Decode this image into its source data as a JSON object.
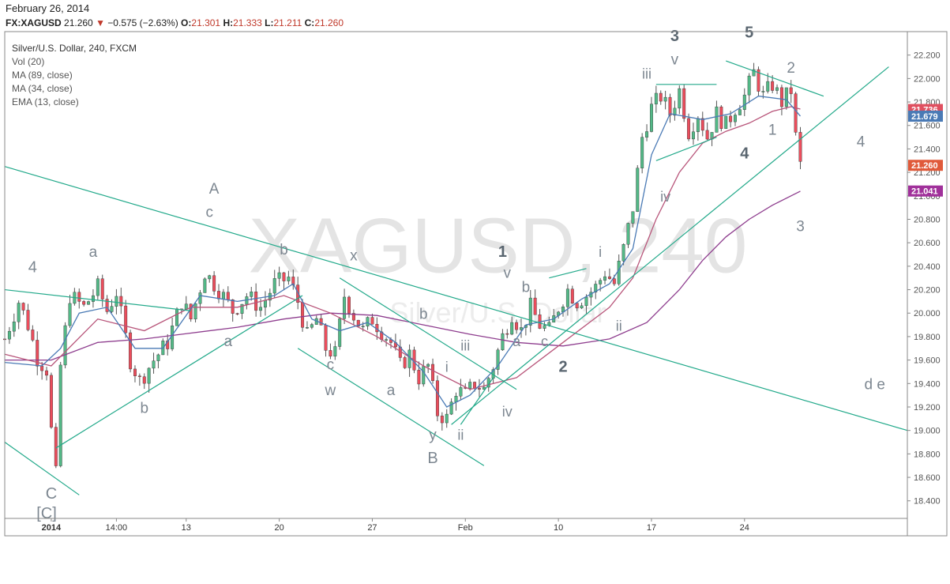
{
  "header": {
    "date": "February 26, 2014",
    "symbol": "FX:XAGUSD",
    "last": "21.260",
    "change_arrow": "▼",
    "change": "−0.575 (−2.63%)",
    "o_label": "O:",
    "o_value": "21.301",
    "h_label": "H:",
    "h_value": "21.333",
    "l_label": "L:",
    "l_value": "21.211",
    "c_label": "C:",
    "c_value": "21.260"
  },
  "legend": [
    "Silver/U.S. Dollar, 240, FXCM",
    "Vol (20)",
    "MA (89, close)",
    "MA (34, close)",
    "EMA (13, close)"
  ],
  "watermark": {
    "main": "XAGUSD, 240",
    "sub": "Silver/U.S. Dollar"
  },
  "colors": {
    "up": "#53b987",
    "down": "#eb4d5c",
    "wick": "#555555",
    "trendline": "#22a98a",
    "ma89": "#8e3d8e",
    "ma34": "#b8557a",
    "ema13": "#4a7ab5",
    "label": "#7d8791",
    "axis": "#555555"
  },
  "price_badges": [
    {
      "value": "21.736",
      "color": "#e05060"
    },
    {
      "value": "21.679",
      "color": "#4a7ab5"
    },
    {
      "value": "21.260",
      "color": "#e05a3a"
    },
    {
      "value": "21.041",
      "color": "#a0309a"
    }
  ],
  "chart_data": {
    "type": "candlestick",
    "title": "Silver/U.S. Dollar, 240, FXCM",
    "ylim": [
      18.25,
      22.4
    ],
    "y_ticks": [
      "18.400",
      "18.600",
      "18.800",
      "19.000",
      "19.200",
      "19.400",
      "19.600",
      "19.800",
      "20.000",
      "20.200",
      "20.400",
      "20.600",
      "20.800",
      "21.000",
      "21.200",
      "21.400",
      "21.600",
      "21.800",
      "22.000",
      "22.200"
    ],
    "x_ticks": [
      {
        "label": "2014",
        "i": 10,
        "bold": true
      },
      {
        "label": "14:00",
        "i": 24
      },
      {
        "label": "13",
        "i": 39
      },
      {
        "label": "20",
        "i": 59
      },
      {
        "label": "27",
        "i": 79
      },
      {
        "label": "Feb",
        "i": 99
      },
      {
        "label": "10",
        "i": 119
      },
      {
        "label": "17",
        "i": 139
      },
      {
        "label": "24",
        "i": 159
      }
    ],
    "x_range": [
      0,
      194
    ],
    "anchors": [
      [
        0,
        19.78
      ],
      [
        3,
        20.1
      ],
      [
        5,
        19.9
      ],
      [
        7,
        19.62
      ],
      [
        9,
        19.52
      ],
      [
        10,
        19.0
      ],
      [
        11,
        18.62
      ],
      [
        12,
        19.55
      ],
      [
        14,
        20.15
      ],
      [
        17,
        20.05
      ],
      [
        20,
        20.22
      ],
      [
        22,
        20.02
      ],
      [
        24,
        20.18
      ],
      [
        27,
        19.6
      ],
      [
        29,
        19.42
      ],
      [
        32,
        19.6
      ],
      [
        35,
        19.75
      ],
      [
        38,
        20.1
      ],
      [
        40,
        19.95
      ],
      [
        43,
        20.35
      ],
      [
        46,
        20.2
      ],
      [
        49,
        20.02
      ],
      [
        52,
        20.15
      ],
      [
        55,
        20.05
      ],
      [
        58,
        20.25
      ],
      [
        61,
        20.3
      ],
      [
        63,
        20.1
      ],
      [
        65,
        19.8
      ],
      [
        67,
        19.95
      ],
      [
        69,
        19.7
      ],
      [
        71,
        19.65
      ],
      [
        73,
        20.15
      ],
      [
        75,
        19.98
      ],
      [
        77,
        19.85
      ],
      [
        79,
        19.95
      ],
      [
        81,
        19.85
      ],
      [
        83,
        19.75
      ],
      [
        85,
        19.55
      ],
      [
        87,
        19.65
      ],
      [
        89,
        19.45
      ],
      [
        91,
        19.55
      ],
      [
        93,
        19.15
      ],
      [
        95,
        19.1
      ],
      [
        97,
        19.35
      ],
      [
        99,
        19.3
      ],
      [
        101,
        19.4
      ],
      [
        103,
        19.35
      ],
      [
        105,
        19.55
      ],
      [
        107,
        19.8
      ],
      [
        109,
        20.0
      ],
      [
        111,
        19.85
      ],
      [
        113,
        20.05
      ],
      [
        115,
        19.9
      ],
      [
        117,
        19.85
      ],
      [
        119,
        20.05
      ],
      [
        121,
        20.2
      ],
      [
        123,
        20.1
      ],
      [
        125,
        20.15
      ],
      [
        127,
        20.22
      ],
      [
        129,
        20.35
      ],
      [
        131,
        20.25
      ],
      [
        133,
        20.55
      ],
      [
        135,
        20.9
      ],
      [
        137,
        21.5
      ],
      [
        139,
        21.75
      ],
      [
        141,
        21.85
      ],
      [
        143,
        21.7
      ],
      [
        145,
        21.9
      ],
      [
        147,
        21.55
      ],
      [
        149,
        21.7
      ],
      [
        151,
        21.5
      ],
      [
        153,
        21.7
      ],
      [
        155,
        21.6
      ],
      [
        157,
        21.75
      ],
      [
        159,
        21.85
      ],
      [
        161,
        22.05
      ],
      [
        163,
        21.85
      ],
      [
        165,
        21.95
      ],
      [
        167,
        21.8
      ],
      [
        169,
        21.9
      ],
      [
        170,
        21.5
      ],
      [
        171,
        21.26
      ]
    ],
    "volatility": [
      [
        10,
        -0.5
      ],
      [
        11,
        0.1
      ],
      [
        93,
        -0.1
      ],
      [
        137,
        0.05
      ],
      [
        171,
        0.0
      ]
    ],
    "ma_series": [
      {
        "key": "ma89",
        "color": "#8e3d8e",
        "period": "89",
        "points": [
          [
            0,
            19.6
          ],
          [
            10,
            19.6
          ],
          [
            20,
            19.75
          ],
          [
            30,
            19.78
          ],
          [
            40,
            19.83
          ],
          [
            50,
            19.88
          ],
          [
            60,
            19.95
          ],
          [
            70,
            20.0
          ],
          [
            80,
            19.98
          ],
          [
            90,
            19.9
          ],
          [
            100,
            19.82
          ],
          [
            110,
            19.75
          ],
          [
            120,
            19.72
          ],
          [
            130,
            19.78
          ],
          [
            138,
            19.92
          ],
          [
            145,
            20.2
          ],
          [
            150,
            20.45
          ],
          [
            155,
            20.65
          ],
          [
            160,
            20.8
          ],
          [
            165,
            20.92
          ],
          [
            171,
            21.04
          ]
        ]
      },
      {
        "key": "ma34",
        "color": "#b8557a",
        "period": "34",
        "points": [
          [
            0,
            19.65
          ],
          [
            10,
            19.55
          ],
          [
            20,
            19.95
          ],
          [
            30,
            19.85
          ],
          [
            40,
            20.05
          ],
          [
            50,
            20.05
          ],
          [
            60,
            20.15
          ],
          [
            70,
            20.0
          ],
          [
            80,
            19.8
          ],
          [
            90,
            19.55
          ],
          [
            100,
            19.35
          ],
          [
            110,
            19.45
          ],
          [
            120,
            19.75
          ],
          [
            130,
            20.05
          ],
          [
            135,
            20.3
          ],
          [
            140,
            20.8
          ],
          [
            145,
            21.2
          ],
          [
            150,
            21.45
          ],
          [
            155,
            21.55
          ],
          [
            160,
            21.62
          ],
          [
            165,
            21.72
          ],
          [
            169,
            21.76
          ],
          [
            171,
            21.74
          ]
        ]
      },
      {
        "key": "ema13",
        "color": "#4a7ab5",
        "period": "13",
        "points": [
          [
            0,
            19.58
          ],
          [
            8,
            19.55
          ],
          [
            12,
            19.7
          ],
          [
            16,
            20.0
          ],
          [
            22,
            20.05
          ],
          [
            28,
            19.7
          ],
          [
            34,
            19.7
          ],
          [
            42,
            20.15
          ],
          [
            50,
            20.1
          ],
          [
            58,
            20.15
          ],
          [
            62,
            20.25
          ],
          [
            66,
            19.95
          ],
          [
            72,
            19.85
          ],
          [
            78,
            19.92
          ],
          [
            84,
            19.75
          ],
          [
            90,
            19.5
          ],
          [
            95,
            19.2
          ],
          [
            100,
            19.3
          ],
          [
            106,
            19.55
          ],
          [
            112,
            19.9
          ],
          [
            118,
            19.95
          ],
          [
            124,
            20.12
          ],
          [
            130,
            20.25
          ],
          [
            135,
            20.55
          ],
          [
            139,
            21.35
          ],
          [
            143,
            21.7
          ],
          [
            150,
            21.65
          ],
          [
            156,
            21.7
          ],
          [
            162,
            21.85
          ],
          [
            168,
            21.82
          ],
          [
            171,
            21.68
          ]
        ]
      }
    ],
    "trendlines": [
      [
        [
          0,
          21.25
        ],
        [
          194,
          19.0
        ]
      ],
      [
        [
          0,
          20.2
        ],
        [
          40,
          20.02
        ]
      ],
      [
        [
          0,
          18.9
        ],
        [
          16,
          18.45
        ]
      ],
      [
        [
          11,
          18.85
        ],
        [
          64,
          20.15
        ]
      ],
      [
        [
          63,
          19.7
        ],
        [
          103,
          18.7
        ]
      ],
      [
        [
          72,
          20.3
        ],
        [
          110,
          19.35
        ]
      ],
      [
        [
          96,
          19.05
        ],
        [
          190,
          22.1
        ]
      ],
      [
        [
          98,
          19.05
        ],
        [
          105,
          19.45
        ]
      ],
      [
        [
          117,
          20.3
        ],
        [
          125,
          20.38
        ]
      ],
      [
        [
          140,
          21.3
        ],
        [
          153,
          21.5
        ]
      ],
      [
        [
          140,
          21.95
        ],
        [
          153,
          21.95
        ]
      ],
      [
        [
          155,
          22.15
        ],
        [
          176,
          21.85
        ]
      ]
    ],
    "wave_labels": [
      {
        "text": "4",
        "i": 6,
        "p": 20.35,
        "size": 20
      },
      {
        "text": "C",
        "i": 10,
        "p": 18.42,
        "size": 20
      },
      {
        "text": "[C]",
        "i": 9,
        "p": 18.25,
        "size": 20
      },
      {
        "text": "a",
        "i": 19,
        "p": 20.48,
        "size": 19
      },
      {
        "text": "b",
        "i": 30,
        "p": 19.15,
        "size": 19
      },
      {
        "text": "A",
        "i": 45,
        "p": 21.02,
        "size": 19
      },
      {
        "text": "c",
        "i": 44,
        "p": 20.82,
        "size": 19
      },
      {
        "text": "a",
        "i": 48,
        "p": 19.72,
        "size": 19
      },
      {
        "text": "b",
        "i": 60,
        "p": 20.5,
        "size": 19
      },
      {
        "text": "x",
        "i": 75,
        "p": 20.45,
        "size": 19
      },
      {
        "text": "c",
        "i": 70,
        "p": 19.52,
        "size": 19
      },
      {
        "text": "w",
        "i": 70,
        "p": 19.3,
        "size": 19
      },
      {
        "text": "b",
        "i": 90,
        "p": 19.95,
        "size": 19
      },
      {
        "text": "a",
        "i": 83,
        "p": 19.3,
        "size": 19
      },
      {
        "text": "iii",
        "i": 99,
        "p": 19.68,
        "size": 18
      },
      {
        "text": "i",
        "i": 95,
        "p": 19.5,
        "size": 18
      },
      {
        "text": "iv",
        "i": 108,
        "p": 19.12,
        "size": 18
      },
      {
        "text": "ii",
        "i": 98,
        "p": 18.92,
        "size": 18
      },
      {
        "text": "y",
        "i": 92,
        "p": 18.92,
        "size": 19
      },
      {
        "text": "B",
        "i": 92,
        "p": 18.72,
        "size": 20
      },
      {
        "text": "1",
        "i": 107,
        "p": 20.48,
        "size": 20,
        "bold": true
      },
      {
        "text": "v",
        "i": 108,
        "p": 20.3,
        "size": 19
      },
      {
        "text": "b",
        "i": 112,
        "p": 20.18,
        "size": 19
      },
      {
        "text": "a",
        "i": 110,
        "p": 19.72,
        "size": 18
      },
      {
        "text": "c",
        "i": 116,
        "p": 19.72,
        "size": 18
      },
      {
        "text": "2",
        "i": 120,
        "p": 19.5,
        "size": 20,
        "bold": true
      },
      {
        "text": "i",
        "i": 128,
        "p": 20.48,
        "size": 18
      },
      {
        "text": "ii",
        "i": 132,
        "p": 19.85,
        "size": 18
      },
      {
        "text": "iii",
        "i": 138,
        "p": 22.0,
        "size": 18
      },
      {
        "text": "iv",
        "i": 142,
        "p": 20.95,
        "size": 18
      },
      {
        "text": "3",
        "i": 144,
        "p": 22.32,
        "size": 20,
        "bold": true
      },
      {
        "text": "v",
        "i": 144,
        "p": 22.12,
        "size": 19
      },
      {
        "text": "5",
        "i": 160,
        "p": 22.35,
        "size": 20,
        "bold": true
      },
      {
        "text": "4",
        "i": 159,
        "p": 21.32,
        "size": 20,
        "bold": true
      },
      {
        "text": "1",
        "i": 165,
        "p": 21.52,
        "size": 19
      },
      {
        "text": "2",
        "i": 169,
        "p": 22.05,
        "size": 19
      },
      {
        "text": "3",
        "i": 171,
        "p": 20.7,
        "size": 19
      },
      {
        "text": "4",
        "i": 184,
        "p": 21.42,
        "size": 19
      },
      {
        "text": "d e",
        "i": 187,
        "p": 19.35,
        "size": 19
      }
    ]
  }
}
